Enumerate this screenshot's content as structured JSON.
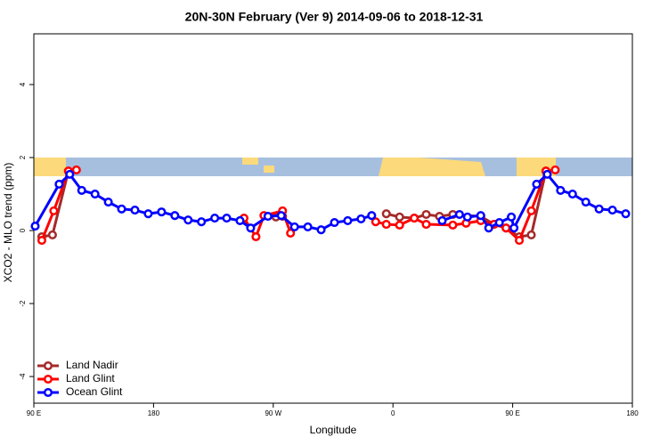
{
  "chart_data": {
    "type": "line",
    "title": "20N-30N February (Ver 9)   2014-09-06 to 2018-12-31",
    "x_label": "Longitude",
    "y_label": "XCO2 - MLO trend (ppm)",
    "xlim": [
      90,
      540
    ],
    "xticks": [
      {
        "value": 90,
        "label": "90 E"
      },
      180,
      {
        "value": 270,
        "label": "90 W"
      },
      {
        "value": 360,
        "label": "0"
      },
      {
        "value": 450,
        "label": "90 E"
      },
      {
        "value": 540,
        "label": "180"
      }
    ],
    "ylim": [
      -4.73,
      5.39
    ],
    "yticks": [
      -4,
      -2,
      0,
      2,
      4
    ],
    "legend": "bottom-left",
    "series": [
      {
        "name": "Land Nadir",
        "color": "#a52a2a",
        "x": [
          96,
          104,
          116,
          null,
          272,
          277,
          null,
          355,
          365,
          376,
          385,
          395,
          405,
          426,
          436,
          445,
          455,
          464,
          475
        ],
        "values": [
          -0.17,
          -0.12,
          1.63,
          null,
          0.37,
          0.39,
          null,
          0.46,
          0.37,
          0.34,
          0.44,
          0.39,
          0.44,
          0.39,
          0.17,
          0.07,
          -0.17,
          -0.12,
          1.63
        ]
      },
      {
        "name": "Land Glint",
        "color": "#ff0000",
        "x": [
          96,
          105,
          116,
          122,
          null,
          248,
          257,
          263,
          277,
          283,
          null,
          347,
          355,
          365,
          376,
          385,
          405,
          415,
          426,
          436,
          445,
          455,
          464,
          475,
          482
        ],
        "values": [
          -0.27,
          0.54,
          1.63,
          1.66,
          null,
          0.34,
          -0.17,
          0.41,
          0.54,
          -0.07,
          null,
          0.24,
          0.17,
          0.15,
          0.34,
          0.17,
          0.15,
          0.2,
          0.27,
          0.17,
          0.07,
          -0.27,
          0.54,
          1.63,
          1.66
        ]
      },
      {
        "name": "Ocean Glint",
        "color": "#0000ff",
        "x": [
          91,
          109,
          117,
          126,
          136,
          146,
          156,
          166,
          176,
          186,
          196,
          206,
          216,
          226,
          235,
          245,
          253,
          266,
          276,
          286,
          296,
          306,
          316,
          326,
          336,
          344,
          null,
          397,
          410,
          416,
          426,
          432,
          440,
          449,
          451,
          468,
          476,
          486,
          495,
          505,
          515,
          525,
          535
        ],
        "values": [
          0.12,
          1.27,
          1.54,
          1.1,
          1.0,
          0.78,
          0.59,
          0.56,
          0.46,
          0.51,
          0.41,
          0.29,
          0.24,
          0.34,
          0.34,
          0.27,
          0.07,
          0.39,
          0.41,
          0.1,
          0.1,
          0.02,
          0.22,
          0.27,
          0.32,
          0.41,
          null,
          0.27,
          0.44,
          0.37,
          0.41,
          0.07,
          0.22,
          0.37,
          0.07,
          1.27,
          1.54,
          1.1,
          1.0,
          0.78,
          0.59,
          0.56,
          0.46
        ]
      }
    ]
  }
}
